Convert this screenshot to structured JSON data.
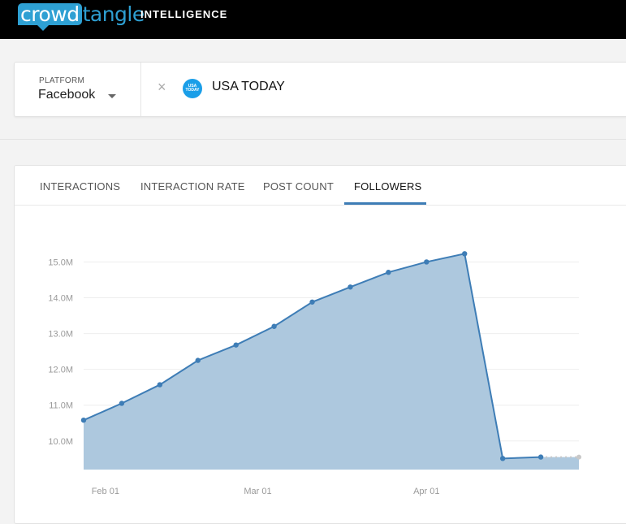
{
  "header": {
    "logo_crowd": "crowd",
    "logo_tangle": "tangle",
    "nav_item": "INTELLIGENCE"
  },
  "account_bar": {
    "platform_label": "PLATFORM",
    "platform_value": "Facebook",
    "remove_icon": "×",
    "avatar_text": "USA TODAY",
    "account_name": "USA TODAY"
  },
  "tabs": [
    {
      "label": "INTERACTIONS",
      "active": false
    },
    {
      "label": "INTERACTION RATE",
      "active": false
    },
    {
      "label": "POST COUNT",
      "active": false
    },
    {
      "label": "FOLLOWERS",
      "active": true
    }
  ],
  "colors": {
    "brand": "#2ea0d3",
    "line": "#3e7db6",
    "area": "#adc8de",
    "projection": "#c8c8c8"
  },
  "chart_data": {
    "type": "area",
    "y_ticks": [
      "10.0M",
      "11.0M",
      "12.0M",
      "13.0M",
      "14.0M",
      "15.0M"
    ],
    "x_ticks": [
      "Feb 01",
      "Mar 01",
      "Apr 01"
    ],
    "ylim": [
      9.2,
      15.6
    ],
    "grid": true,
    "series": [
      {
        "x": [
          "Jan 28",
          "Feb 04",
          "Feb 11",
          "Feb 18",
          "Feb 25",
          "Mar 04",
          "Mar 11",
          "Mar 18",
          "Mar 25",
          "Apr 01",
          "Apr 08",
          "Apr 15",
          "Apr 22"
        ],
        "values": [
          10.58,
          11.05,
          11.57,
          12.25,
          12.68,
          13.2,
          13.88,
          14.3,
          14.71,
          15.0,
          15.23,
          9.51,
          9.55
        ]
      }
    ],
    "projection": {
      "x": [
        "Apr 22",
        "Apr 29"
      ],
      "values": [
        9.55,
        9.55
      ]
    }
  }
}
